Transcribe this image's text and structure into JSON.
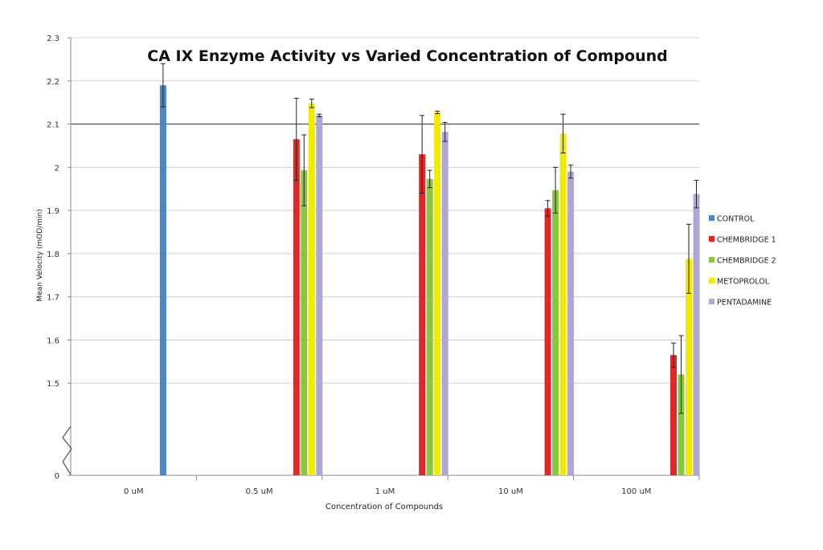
{
  "chart_data": {
    "type": "bar",
    "title": "CA IX Enzyme Activity vs Varied Concentration of Compound",
    "xlabel": "Concentration of Compounds",
    "ylabel": "Mean Velocity (mOD/min)",
    "y_ticks": [
      "0",
      "1.5",
      "1.6",
      "1.7",
      "1.8",
      "1.9",
      "2",
      "2.1",
      "2.2",
      "2.3"
    ],
    "axis_break": {
      "from": 0,
      "to": 1.4
    },
    "ylim": [
      1.4,
      2.3
    ],
    "grid": true,
    "highlight_line": 2.1,
    "legend_position": "right",
    "categories": [
      "0 uM",
      "0.5 uM",
      "1 uM",
      "10 uM",
      "100 uM"
    ],
    "series": [
      {
        "name": "CONTROL",
        "color": "#4a86c8",
        "values": [
          2.19,
          null,
          null,
          null,
          null
        ],
        "errors": [
          0.05,
          null,
          null,
          null,
          null
        ]
      },
      {
        "name": "CHEMBRIDGE 1",
        "color": "#e02828",
        "values": [
          null,
          2.065,
          2.03,
          1.905,
          1.565
        ],
        "errors": [
          null,
          0.095,
          0.09,
          0.018,
          0.028
        ]
      },
      {
        "name": "CHEMBRIDGE 2",
        "color": "#8cc63f",
        "values": [
          null,
          1.993,
          1.973,
          1.947,
          1.52
        ],
        "errors": [
          null,
          0.082,
          0.02,
          0.053,
          0.09
        ]
      },
      {
        "name": "METOPROLOL",
        "color": "#f2ea00",
        "values": [
          null,
          2.148,
          2.127,
          2.078,
          1.788
        ],
        "errors": [
          null,
          0.01,
          0.003,
          0.045,
          0.08
        ]
      },
      {
        "name": "PENTADAMINE",
        "color": "#b2a6d6",
        "values": [
          null,
          2.12,
          2.082,
          1.99,
          1.938
        ],
        "errors": [
          null,
          0.003,
          0.022,
          0.015,
          0.032
        ]
      }
    ]
  }
}
